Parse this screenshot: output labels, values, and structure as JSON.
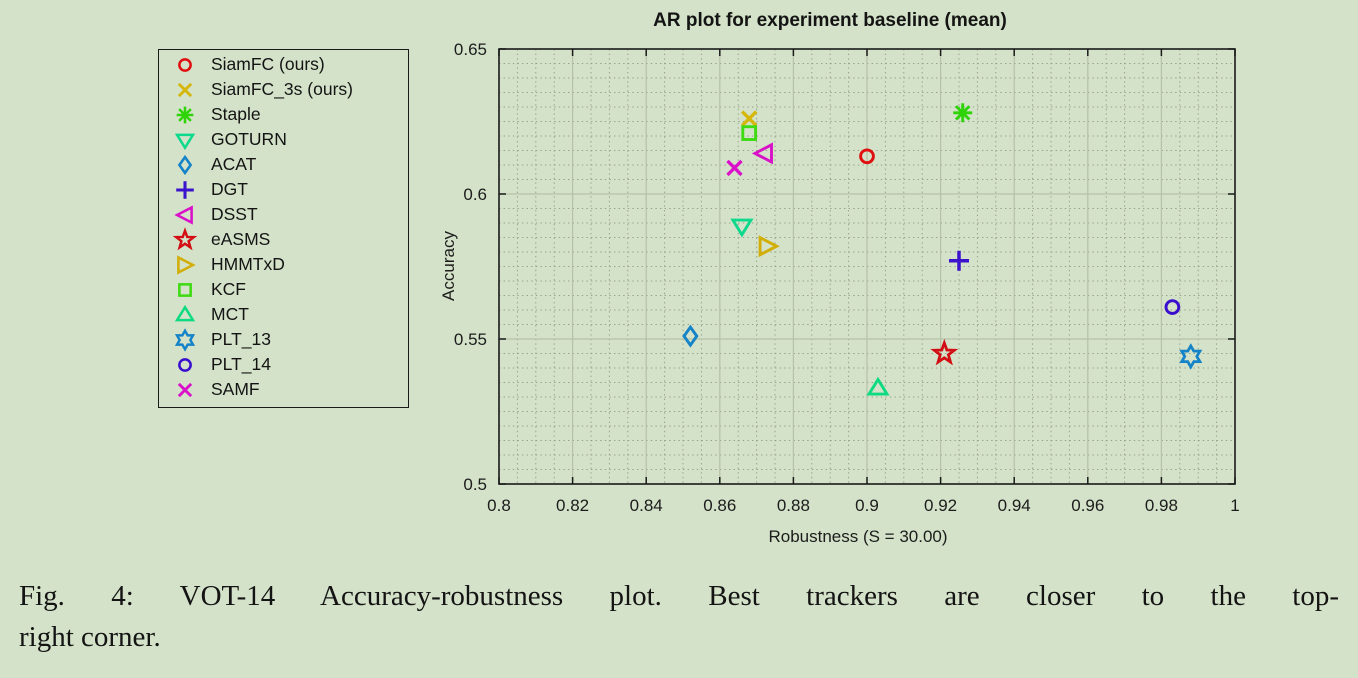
{
  "figure": {
    "background_color": "#d4e2c9",
    "caption": {
      "line1": "Fig. 4: VOT-14 Accuracy-robustness plot. Best trackers are closer to the top-",
      "line2": "right corner."
    }
  },
  "chart_data": {
    "type": "scatter",
    "title": "AR plot for experiment baseline (mean)",
    "xlabel": "Robustness (S = 30.00)",
    "ylabel": "Accuracy",
    "xlim": [
      0.8,
      1.0
    ],
    "ylim": [
      0.5,
      0.65
    ],
    "x_ticks": [
      0.8,
      0.82,
      0.84,
      0.86,
      0.88,
      0.9,
      0.92,
      0.94,
      0.96,
      0.98,
      1.0
    ],
    "x_tick_labels": [
      "0.8",
      "0.82",
      "0.84",
      "0.86",
      "0.88",
      "0.9",
      "0.92",
      "0.94",
      "0.96",
      "0.98",
      "1"
    ],
    "y_ticks": [
      0.5,
      0.55,
      0.6,
      0.65
    ],
    "y_tick_labels": [
      "0.5",
      "0.55",
      "0.6",
      "0.65"
    ],
    "minor_grid_step": 0.005,
    "grid": {
      "major": "solid",
      "minor": "dotted"
    },
    "legend_position": "outside top-left, boxed",
    "series": [
      {
        "name": "SiamFC (ours)",
        "marker": "circle",
        "color": "#e01010",
        "x": 0.9,
        "y": 0.613
      },
      {
        "name": "SiamFC_3s (ours)",
        "marker": "x",
        "color": "#d5b70a",
        "x": 0.868,
        "y": 0.626
      },
      {
        "name": "Staple",
        "marker": "asterisk",
        "color": "#2ed308",
        "x": 0.926,
        "y": 0.628
      },
      {
        "name": "GOTURN",
        "marker": "triangle-down",
        "color": "#0cd98c",
        "x": 0.866,
        "y": 0.589
      },
      {
        "name": "ACAT",
        "marker": "diamond",
        "color": "#1583c8",
        "x": 0.852,
        "y": 0.551
      },
      {
        "name": "DGT",
        "marker": "plus",
        "color": "#3b13cc",
        "x": 0.925,
        "y": 0.577
      },
      {
        "name": "DSST",
        "marker": "triangle-left",
        "color": "#d911c8",
        "x": 0.872,
        "y": 0.614
      },
      {
        "name": "eASMS",
        "marker": "star5",
        "color": "#d20d14",
        "x": 0.921,
        "y": 0.545
      },
      {
        "name": "HMMTxD",
        "marker": "triangle-right",
        "color": "#d2ae08",
        "x": 0.873,
        "y": 0.582
      },
      {
        "name": "KCF",
        "marker": "square",
        "color": "#3eda12",
        "x": 0.868,
        "y": 0.621
      },
      {
        "name": "MCT",
        "marker": "triangle-up",
        "color": "#0eda84",
        "x": 0.903,
        "y": 0.533
      },
      {
        "name": "PLT_13",
        "marker": "star6",
        "color": "#1583c8",
        "x": 0.988,
        "y": 0.544
      },
      {
        "name": "PLT_14",
        "marker": "circle",
        "color": "#3a0ecd",
        "x": 0.983,
        "y": 0.561
      },
      {
        "name": "SAMF",
        "marker": "x",
        "color": "#da10ca",
        "x": 0.864,
        "y": 0.609
      }
    ]
  }
}
